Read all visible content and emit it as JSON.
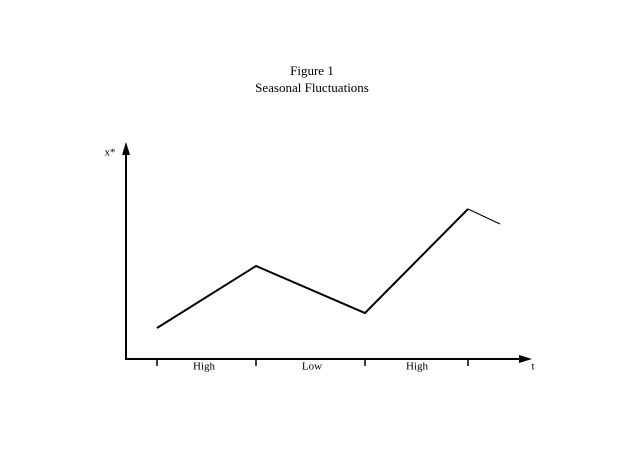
{
  "header": {
    "title": "Figure 1",
    "subtitle": "Seasonal Fluctuations"
  },
  "axes": {
    "y_label": "x*",
    "x_label": "t"
  },
  "periods": [
    "High",
    "Low",
    "High"
  ]
}
